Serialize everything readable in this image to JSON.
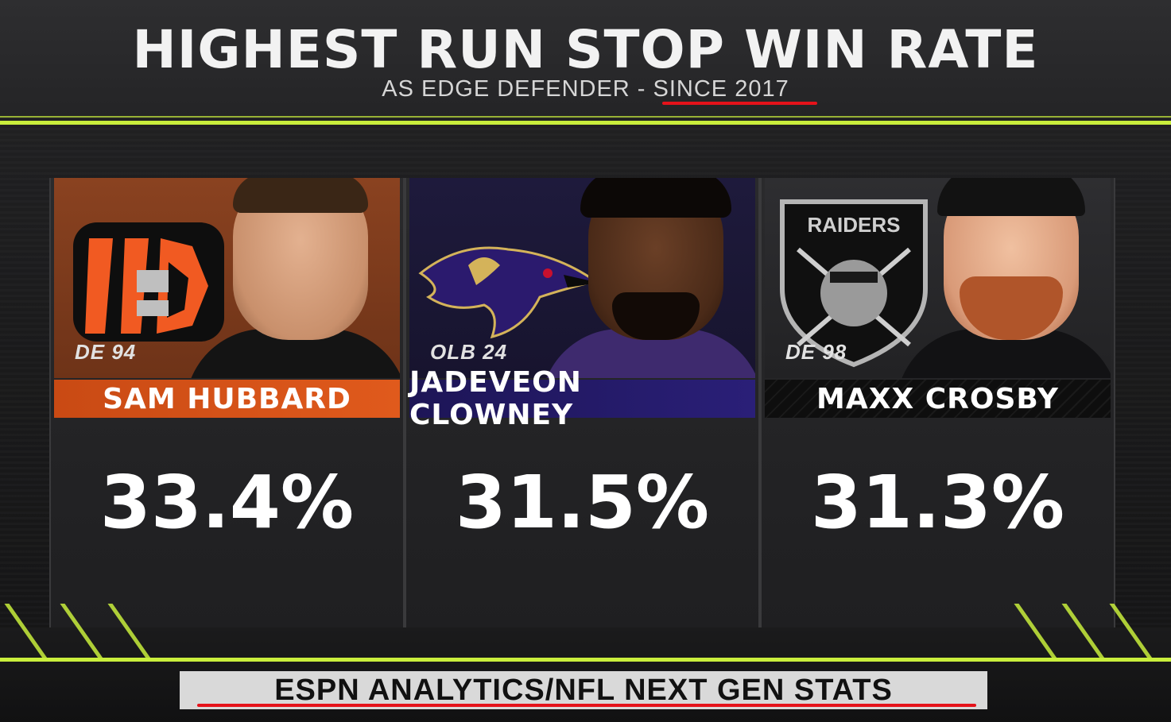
{
  "header": {
    "title": "HIGHEST RUN STOP WIN RATE",
    "subtitle": "AS EDGE DEFENDER - SINCE 2017"
  },
  "players": [
    {
      "position": "DE 94",
      "name": "SAM HUBBARD",
      "stat": "33.4%",
      "team_color": "#d4551b",
      "bg_color": "#7a3a1c"
    },
    {
      "position": "OLB 24",
      "name": "JADEVEON CLOWNEY",
      "stat": "31.5%",
      "team_color": "#24196b",
      "bg_color": "#1e1a3c"
    },
    {
      "position": "DE 98",
      "name": "MAXX CROSBY",
      "stat": "31.3%",
      "team_color": "#0c0c0c",
      "bg_color": "#262629"
    }
  ],
  "footer": {
    "source": "ESPN ANALYTICS/NFL NEXT GEN STATS"
  },
  "colors": {
    "accent": "#c9ee3c",
    "underline": "#e5121a"
  }
}
